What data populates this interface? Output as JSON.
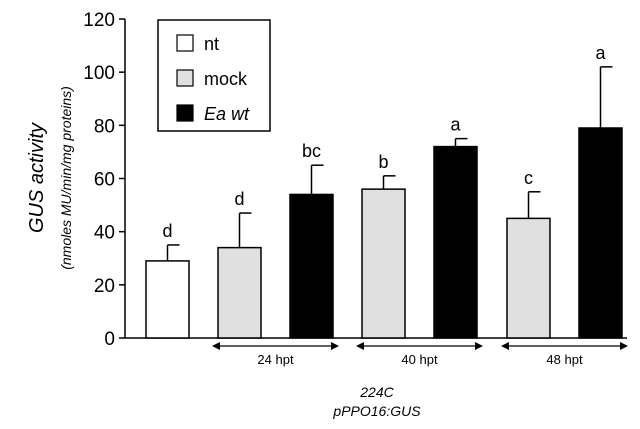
{
  "chart_data": {
    "type": "bar",
    "ylabel": "GUS activity",
    "ylabel_sub": "(nmoles MU/min/mg proteins)",
    "ylim": [
      0,
      120
    ],
    "yticks": [
      0,
      20,
      40,
      60,
      80,
      100,
      120
    ],
    "series_colors": {
      "nt": "#ffffff",
      "mock": "#e0e0e0",
      "Ea wt": "#000000"
    },
    "legend": {
      "placement": "top-left",
      "entries": [
        {
          "label": "nt",
          "italic": false,
          "color": "#ffffff"
        },
        {
          "label": "mock",
          "italic": false,
          "color": "#e0e0e0"
        },
        {
          "label": "Ea wt",
          "italic": true,
          "color": "#000000"
        }
      ]
    },
    "bars": [
      {
        "series": "nt",
        "value": 29,
        "error": 6,
        "label": "d"
      },
      {
        "series": "mock",
        "value": 34,
        "error": 13,
        "label": "d"
      },
      {
        "series": "Ea wt",
        "value": 54,
        "error": 11,
        "label": "bc"
      },
      {
        "series": "mock",
        "value": 56,
        "error": 5,
        "label": "b"
      },
      {
        "series": "Ea wt",
        "value": 72,
        "error": 3,
        "label": "a"
      },
      {
        "series": "mock",
        "value": 45,
        "error": 10,
        "label": "c"
      },
      {
        "series": "Ea wt",
        "value": 79,
        "error": 23,
        "label": "a"
      }
    ],
    "groups": [
      {
        "label": "24 hpt",
        "bars": [
          1,
          2
        ]
      },
      {
        "label": "40 hpt",
        "bars": [
          3,
          4
        ]
      },
      {
        "label": "48 hpt",
        "bars": [
          5,
          6
        ]
      }
    ],
    "caption_line1": "224C",
    "caption_line2": "pPPO16:GUS"
  }
}
